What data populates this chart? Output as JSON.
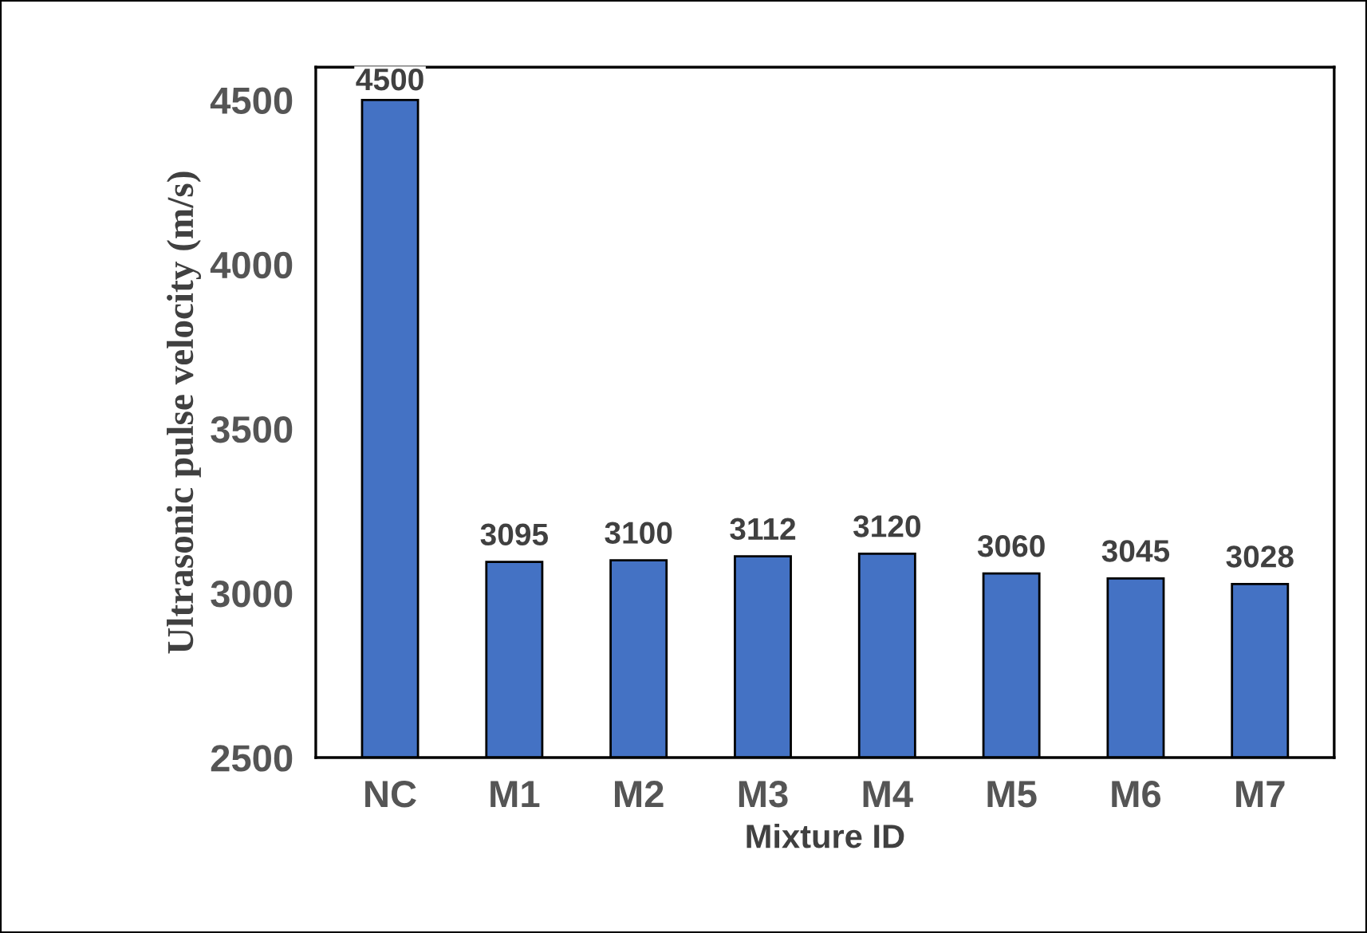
{
  "chart_data": {
    "type": "bar",
    "xlabel": "Mixture ID",
    "ylabel": "Ultrasonic pulse velocity (m/s)",
    "categories": [
      "NC",
      "M1",
      "M2",
      "M3",
      "M4",
      "M5",
      "M6",
      "M7"
    ],
    "values": [
      4500,
      3095,
      3100,
      3112,
      3120,
      3060,
      3045,
      3028
    ],
    "color": "#4472c4",
    "ylim": [
      2500,
      4600
    ],
    "yticks": [
      2500,
      3000,
      3500,
      4000,
      4500
    ],
    "grid": false,
    "data_labels": true
  }
}
